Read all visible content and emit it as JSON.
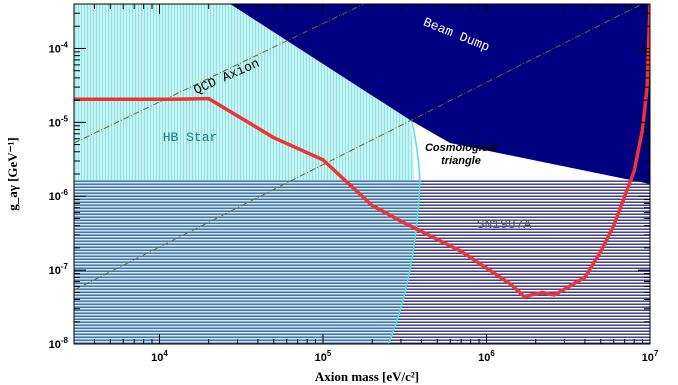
{
  "chart_data": {
    "type": "line",
    "xlabel": "Axion mass [eV/c²]",
    "ylabel": "g_aγ [GeV⁻¹]",
    "xscale": "log",
    "yscale": "log",
    "xlim": [
      3000,
      10000000
    ],
    "ylim": [
      1e-08,
      0.0004
    ],
    "x_ticks": [
      {
        "value": 10000,
        "mant": "10",
        "exp": "4"
      },
      {
        "value": 100000,
        "mant": "10",
        "exp": "5"
      },
      {
        "value": 1000000,
        "mant": "10",
        "exp": "6"
      },
      {
        "value": 10000000,
        "mant": "10",
        "exp": "7"
      }
    ],
    "y_ticks": [
      {
        "value": 1e-08,
        "mant": "10",
        "exp": "-8"
      },
      {
        "value": 1e-07,
        "mant": "10",
        "exp": "-7"
      },
      {
        "value": 1e-06,
        "mant": "10",
        "exp": "-6"
      },
      {
        "value": 1e-05,
        "mant": "10",
        "exp": "-5"
      },
      {
        "value": 0.0001,
        "mant": "10",
        "exp": "-4"
      }
    ],
    "regions": [
      {
        "name": "Beam Dump",
        "fill": "#000080"
      },
      {
        "name": "HB Star",
        "fill": "#b8f0f0"
      },
      {
        "name": "SN1987A",
        "fill": "#000080"
      },
      {
        "name": "Cosmological triangle",
        "fill": "#ffffff"
      }
    ],
    "region_labels": {
      "beam_dump": "Beam Dump",
      "hb_star": "HB Star",
      "sn1987a": "SN1987A",
      "cosmo_line1": "Cosmological",
      "cosmo_line2": "triangle"
    },
    "qcd_label": "QCD Axion",
    "series": [
      {
        "color": "#ee3333",
        "points": [
          [
            3000,
            2.05e-05
          ],
          [
            12000,
            2.05e-05
          ],
          [
            20000,
            2.1e-05
          ],
          [
            50000,
            6.2e-06
          ],
          [
            100000,
            3.1e-06
          ],
          [
            200000,
            7.5e-07
          ],
          [
            300000,
            4.6e-07
          ],
          [
            700000,
            1.8e-07
          ],
          [
            1400000,
            6.5e-08
          ],
          [
            1700000,
            4.4e-08
          ],
          [
            2200000,
            5e-08
          ],
          [
            2600000,
            4.6e-08
          ],
          [
            4000000,
            8e-08
          ],
          [
            5000000,
            1.8e-07
          ],
          [
            6000000,
            4e-07
          ],
          [
            7000000,
            1e-06
          ],
          [
            8000000,
            2.2e-06
          ],
          [
            9000000,
            8e-06
          ],
          [
            9600000,
            3e-05
          ],
          [
            10000000,
            0.0004
          ]
        ]
      }
    ]
  }
}
